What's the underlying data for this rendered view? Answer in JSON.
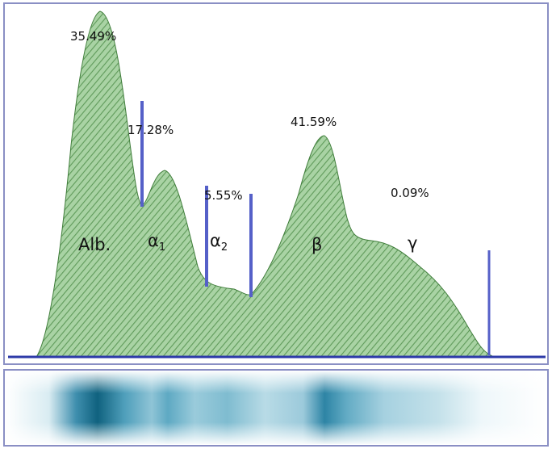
{
  "fractions": [
    {
      "name": {
        "symbol": "Alb."
      },
      "percent": "35.49%"
    },
    {
      "name": {
        "symbol": "α",
        "subscript": "1"
      },
      "percent": "17.28%"
    },
    {
      "name": {
        "symbol": "α",
        "subscript": "2"
      },
      "percent": "5.55%"
    },
    {
      "name": {
        "symbol": "β"
      },
      "percent": "41.59%"
    },
    {
      "name": {
        "symbol": "γ"
      },
      "percent": "0.09%"
    }
  ]
}
